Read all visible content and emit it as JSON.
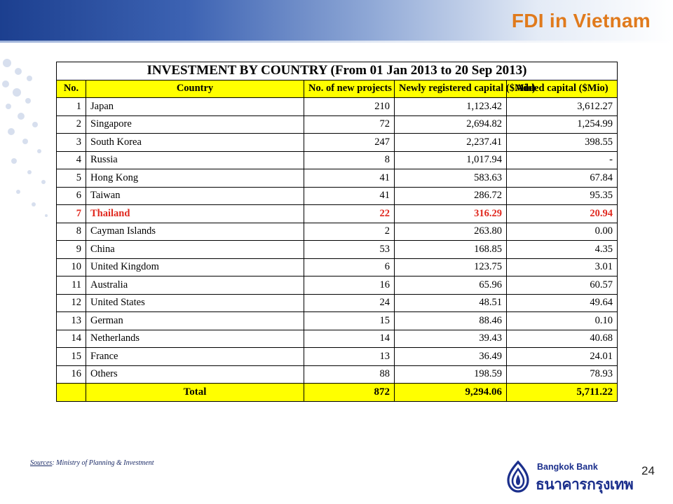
{
  "slide": {
    "title": "FDI in Vietnam",
    "page_number": "24"
  },
  "table": {
    "caption": "INVESTMENT BY COUNTRY (From 01 Jan 2013 to 20 Sep 2013)",
    "headers": {
      "no": "No.",
      "country": "Country",
      "projects": "No. of new projects",
      "newly": "Newly registered capital ($Mio)",
      "added": "Added capital ($Mio)"
    },
    "rows": [
      {
        "no": "1",
        "country": "Japan",
        "projects": "210",
        "newly": "1,123.42",
        "added": "3,612.27"
      },
      {
        "no": "2",
        "country": "Singapore",
        "projects": "72",
        "newly": "2,694.82",
        "added": "1,254.99"
      },
      {
        "no": "3",
        "country": "South Korea",
        "projects": "247",
        "newly": "2,237.41",
        "added": "398.55"
      },
      {
        "no": "4",
        "country": "Russia",
        "projects": "8",
        "newly": "1,017.94",
        "added": "-"
      },
      {
        "no": "5",
        "country": "Hong Kong",
        "projects": "41",
        "newly": "583.63",
        "added": "67.84"
      },
      {
        "no": "6",
        "country": "Taiwan",
        "projects": "41",
        "newly": "286.72",
        "added": "95.35"
      },
      {
        "no": "7",
        "country": "Thailand",
        "projects": "22",
        "newly": "316.29",
        "added": "20.94"
      },
      {
        "no": "8",
        "country": "Cayman Islands",
        "projects": "2",
        "newly": "263.80",
        "added": "0.00"
      },
      {
        "no": "9",
        "country": "China",
        "projects": "53",
        "newly": "168.85",
        "added": "4.35"
      },
      {
        "no": "10",
        "country": "United Kingdom",
        "projects": "6",
        "newly": "123.75",
        "added": "3.01"
      },
      {
        "no": "11",
        "country": "Australia",
        "projects": "16",
        "newly": "65.96",
        "added": "60.57"
      },
      {
        "no": "12",
        "country": "United States",
        "projects": "24",
        "newly": "48.51",
        "added": "49.64"
      },
      {
        "no": "13",
        "country": "German",
        "projects": "15",
        "newly": "88.46",
        "added": "0.10"
      },
      {
        "no": "14",
        "country": "Netherlands",
        "projects": "14",
        "newly": "39.43",
        "added": "40.68"
      },
      {
        "no": "15",
        "country": "France",
        "projects": "13",
        "newly": "36.49",
        "added": "24.01"
      },
      {
        "no": "16",
        "country": "Others",
        "projects": "88",
        "newly": "198.59",
        "added": "78.93"
      }
    ],
    "highlight_row_no": "7",
    "total": {
      "label": "Total",
      "projects": "872",
      "newly": "9,294.06",
      "added": "5,711.22"
    }
  },
  "sources": {
    "label": "Sources",
    "text": ": Ministry of Planning & Investment"
  },
  "logo": {
    "name_en": "Bangkok Bank",
    "name_th": "ธนาคารกรุงเทพ",
    "icon": "bangkok-bank-lotus-icon"
  },
  "colors": {
    "title": "#e07a1c",
    "header_fill": "#ffff00",
    "highlight_text": "#e0281e",
    "banner": "#1c3f8f",
    "logo": "#1b2f8c"
  }
}
